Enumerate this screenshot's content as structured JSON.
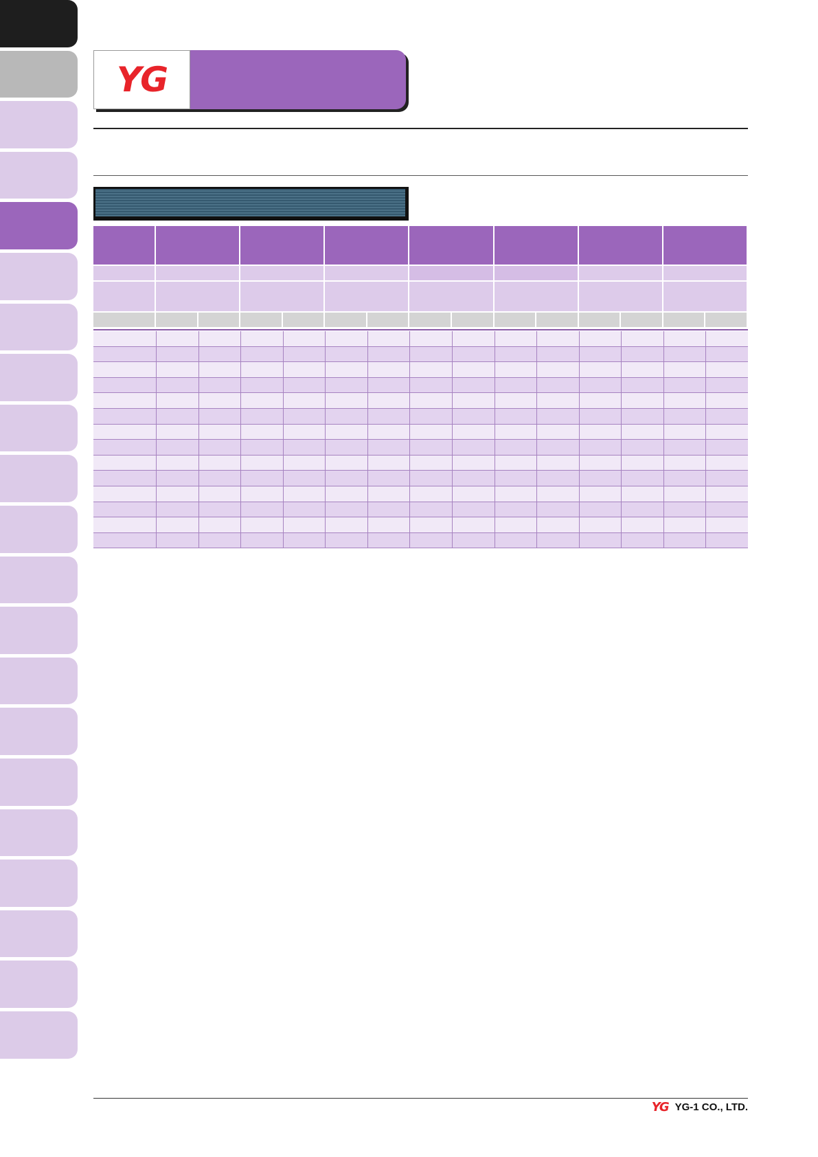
{
  "header": {
    "logo": "YG"
  },
  "footer": {
    "logo": "YG",
    "company": "YG-1 CO., LTD."
  }
}
